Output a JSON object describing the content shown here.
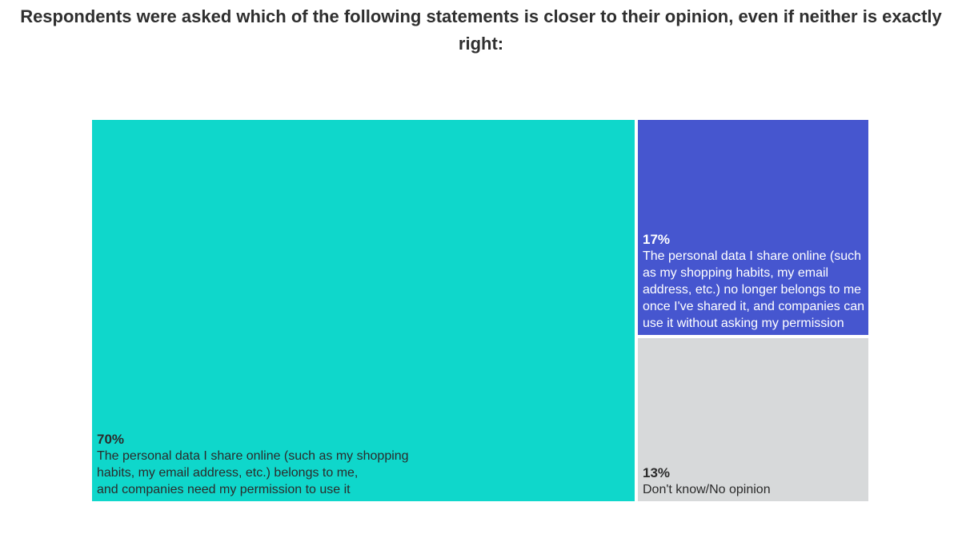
{
  "title": "Respondents were asked which of the following statements is closer to their opinion, even if neither is exactly right:",
  "chart_data": {
    "type": "treemap",
    "title": "Respondents were asked which of the following statements is closer to their opinion, even if neither is exactly right:",
    "items": [
      {
        "value": 70,
        "value_label": "70%",
        "label": "The personal data I share online (such as my shopping habits, my email address, etc.) belongs to me,\nand companies need my permission to use it",
        "color": "#0fd7cb",
        "text_color": "#2b2b2b"
      },
      {
        "value": 17,
        "value_label": "17%",
        "label": "The personal data I share online (such as my shopping habits, my email address, etc.) no longer belongs to me once I've shared it, and companies can use it without asking my permission",
        "color": "#4656cf",
        "text_color": "#ffffff"
      },
      {
        "value": 13,
        "value_label": "13%",
        "label": "Don't know/No opinion",
        "color": "#d7d9da",
        "text_color": "#2b2b2b"
      }
    ]
  }
}
